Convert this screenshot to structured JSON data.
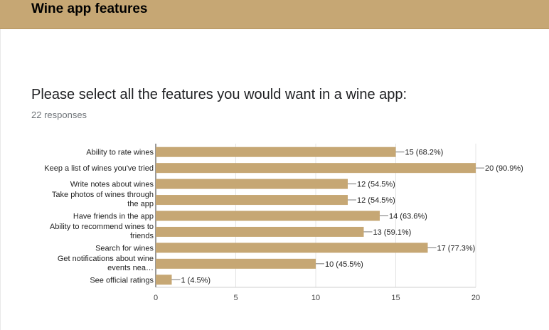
{
  "header": {
    "title": "Wine app features"
  },
  "question": {
    "text": "Please select all the features you would want in a wine app:",
    "responses": "22 responses"
  },
  "chart_data": {
    "type": "bar",
    "orientation": "horizontal",
    "categories": [
      [
        "Ability to rate wines"
      ],
      [
        "Keep a list of wines you've tried"
      ],
      [
        "Write notes about wines"
      ],
      [
        "Take photos of wines through",
        "the app"
      ],
      [
        "Have friends in the app"
      ],
      [
        "Ability to recommend wines to",
        "friends"
      ],
      [
        "Search for wines"
      ],
      [
        "Get notifications about wine",
        "events nea…"
      ],
      [
        "See official ratings"
      ]
    ],
    "values": [
      15,
      20,
      12,
      12,
      14,
      13,
      17,
      10,
      1
    ],
    "value_labels": [
      "15 (68.2%)",
      "20 (90.9%)",
      "12 (54.5%)",
      "12 (54.5%)",
      "14 (63.6%)",
      "13 (59.1%)",
      "17 (77.3%)",
      "10 (45.5%)",
      "1 (4.5%)"
    ],
    "xlim": [
      0,
      20
    ],
    "xticks": [
      "0",
      "5",
      "10",
      "15",
      "20"
    ],
    "grid": true,
    "bar_color": "#c6a774"
  }
}
